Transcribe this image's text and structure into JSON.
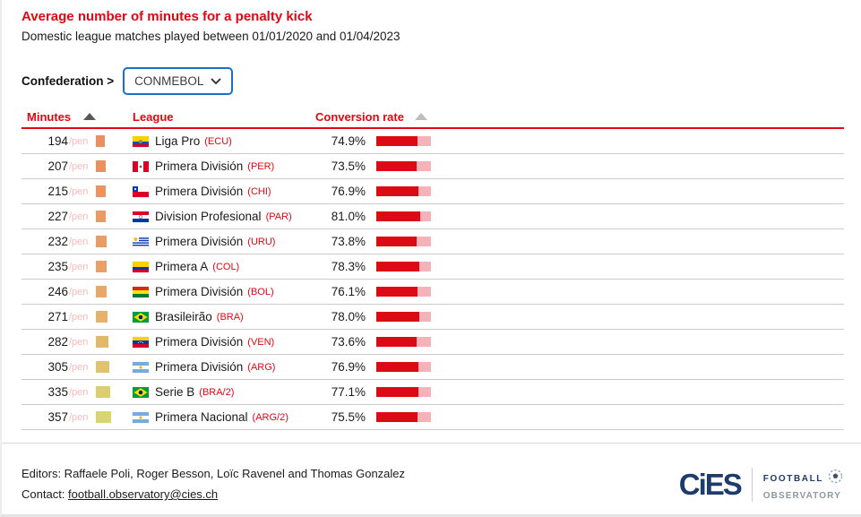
{
  "page": {
    "title": "Average number of minutes for a penalty kick",
    "subtitle": "Domestic league matches played between 01/01/2020 and 01/04/2023"
  },
  "filter": {
    "label": "Confederation >",
    "selected": "CONMEBOL"
  },
  "table": {
    "columns": {
      "minutes": "Minutes",
      "league": "League",
      "rate": "Conversion rate"
    },
    "pen_suffix": "/pen",
    "rows": [
      {
        "minutes": "194",
        "flag": "ECU",
        "league": "Liga Pro",
        "code": "(ECU)",
        "rate": "74.9%",
        "rate_value": 74.9,
        "swatch": "#ec8f5e"
      },
      {
        "minutes": "207",
        "flag": "PER",
        "league": "Primera División",
        "code": "(PER)",
        "rate": "73.5%",
        "rate_value": 73.5,
        "swatch": "#eb9160"
      },
      {
        "minutes": "215",
        "flag": "CHI",
        "league": "Primera División",
        "code": "(CHI)",
        "rate": "76.9%",
        "rate_value": 76.9,
        "swatch": "#eb9462"
      },
      {
        "minutes": "227",
        "flag": "PAR",
        "league": "Division Profesional",
        "code": "(PAR)",
        "rate": "81.0%",
        "rate_value": 81.0,
        "swatch": "#ea9a64"
      },
      {
        "minutes": "232",
        "flag": "URU",
        "league": "Primera División",
        "code": "(URU)",
        "rate": "73.8%",
        "rate_value": 73.8,
        "swatch": "#e99d65"
      },
      {
        "minutes": "235",
        "flag": "COL",
        "league": "Primera A",
        "code": "(COL)",
        "rate": "78.3%",
        "rate_value": 78.3,
        "swatch": "#e9a066"
      },
      {
        "minutes": "246",
        "flag": "BOL",
        "league": "Primera División",
        "code": "(BOL)",
        "rate": "76.1%",
        "rate_value": 76.1,
        "swatch": "#e7a967"
      },
      {
        "minutes": "271",
        "flag": "BRA",
        "league": "Brasileirão",
        "code": "(BRA)",
        "rate": "78.0%",
        "rate_value": 78.0,
        "swatch": "#e4b369"
      },
      {
        "minutes": "282",
        "flag": "VEN",
        "league": "Primera División",
        "code": "(VEN)",
        "rate": "73.6%",
        "rate_value": 73.6,
        "swatch": "#e2b96a"
      },
      {
        "minutes": "305",
        "flag": "ARG",
        "league": "Primera División",
        "code": "(ARG)",
        "rate": "76.9%",
        "rate_value": 76.9,
        "swatch": "#dfc46c"
      },
      {
        "minutes": "335",
        "flag": "BRA",
        "league": "Serie B",
        "code": "(BRA/2)",
        "rate": "77.1%",
        "rate_value": 77.1,
        "swatch": "#dccd6e"
      },
      {
        "minutes": "357",
        "flag": "ARG",
        "league": "Primera Nacional",
        "code": "(ARG/2)",
        "rate": "75.5%",
        "rate_value": 75.5,
        "swatch": "#d9d670"
      }
    ],
    "minutes_range": [
      194,
      357
    ]
  },
  "footer": {
    "editors": "Editors: Raffaele Poli, Roger Besson, Loïc Ravenel and Thomas Gonzalez",
    "contact_label": "Contact: ",
    "contact_link": "football.observatory@cies.ch",
    "logo": {
      "wordmark": "CiES",
      "line1": "FOOTBALL",
      "line2": "OBSERVATORY"
    }
  },
  "colors": {
    "accent_red": "#e30613",
    "bar_fill": "#dc0a14",
    "bar_rest": "#f4b3b8",
    "dropdown_border": "#1a6fc9",
    "logo_navy": "#1d3c6d",
    "logo_grey": "#8e969f"
  }
}
